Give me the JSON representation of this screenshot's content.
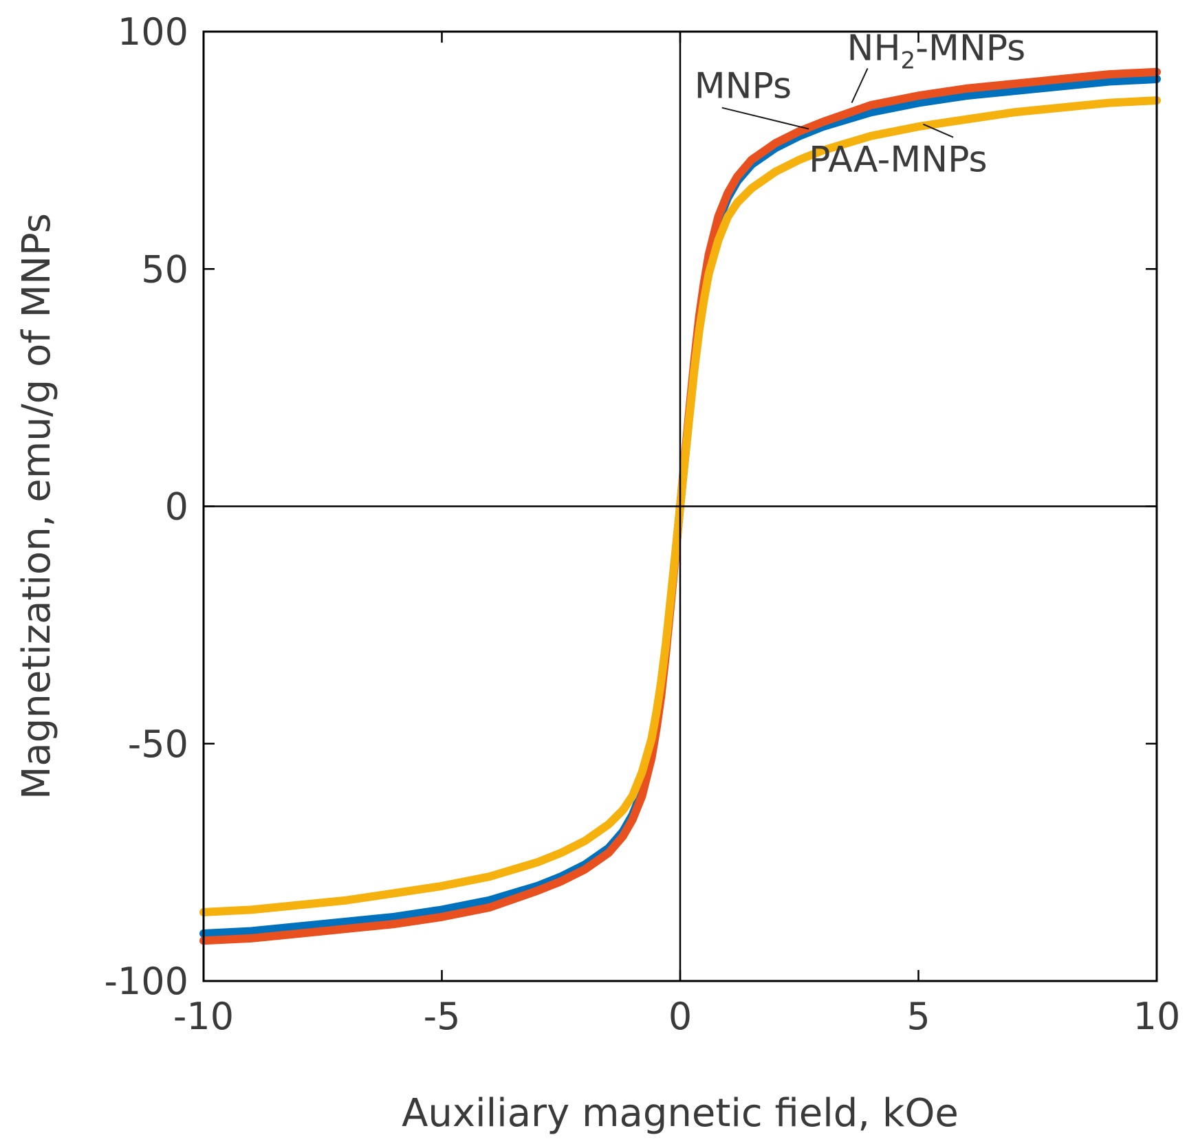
{
  "chart_data": {
    "type": "line",
    "title": "",
    "xlabel": "Auxiliary magnetic field, kOe",
    "ylabel": "Magnetization, emu/g of MNPs",
    "xlim": [
      -10,
      10
    ],
    "ylim": [
      -100,
      100
    ],
    "xticks": [
      -10,
      -5,
      0,
      5,
      10
    ],
    "yticks": [
      -100,
      -50,
      0,
      50,
      100
    ],
    "xtick_labels": [
      "-10",
      "-5",
      "0",
      "5",
      "10"
    ],
    "ytick_labels": [
      "-100",
      "-50",
      "0",
      "50",
      "100"
    ],
    "grid": false,
    "zero_lines": true,
    "legend": "none",
    "x": [
      -10,
      -9,
      -8,
      -7,
      -6,
      -5,
      -4,
      -3,
      -2.5,
      -2,
      -1.5,
      -1.2,
      -1,
      -0.8,
      -0.6,
      -0.5,
      -0.4,
      -0.3,
      -0.2,
      -0.1,
      0,
      0.1,
      0.2,
      0.3,
      0.4,
      0.5,
      0.6,
      0.8,
      1,
      1.2,
      1.5,
      2,
      2.5,
      3,
      4,
      5,
      6,
      7,
      8,
      9,
      10
    ],
    "series": [
      {
        "name": "MNPs",
        "color": "#0072BD",
        "values": [
          -90,
          -89.5,
          -88.5,
          -87.5,
          -86.5,
          -85,
          -83,
          -80,
          -78,
          -75.5,
          -72,
          -68.5,
          -65,
          -60,
          -52,
          -46,
          -39,
          -30,
          -20,
          -10,
          0,
          10,
          20,
          30,
          39,
          46,
          52,
          60,
          65,
          68.5,
          72,
          75.5,
          78,
          80,
          83,
          85,
          86.5,
          87.5,
          88.5,
          89.5,
          90
        ]
      },
      {
        "name": "NH",
        "color": "#E85020",
        "values": [
          -91.5,
          -91,
          -90,
          -89,
          -88,
          -86.5,
          -84.5,
          -81,
          -79,
          -76.5,
          -73,
          -69.5,
          -66,
          -61,
          -53,
          -47,
          -40,
          -31,
          -21,
          -10.5,
          0,
          10.5,
          21,
          31,
          40,
          47,
          53,
          61,
          66,
          69.5,
          73,
          76.5,
          79,
          81,
          84.5,
          86.5,
          88,
          89,
          90,
          91,
          91.5
        ]
      },
      {
        "name": "PAA-MNPs",
        "color": "#F5B10E",
        "values": [
          -85.5,
          -85,
          -84,
          -83,
          -81.5,
          -80,
          -78,
          -75,
          -73,
          -70.5,
          -67,
          -64,
          -61,
          -56,
          -49,
          -43.5,
          -37,
          -29,
          -19.5,
          -9.8,
          0,
          9.8,
          19.5,
          29,
          37,
          43.5,
          49,
          56,
          61,
          64,
          67,
          70.5,
          73,
          75,
          78,
          80,
          81.5,
          83,
          84,
          85,
          85.5
        ]
      }
    ],
    "annotations": [
      {
        "text": "MNPs",
        "series": "MNPs",
        "at_x": 2.7,
        "at_y": 79.5,
        "label_x": 0.3,
        "label_y": 86
      },
      {
        "text": "NH",
        "subscript": "2",
        "suffix": "-MNPs",
        "series": "NH",
        "at_x": 3.6,
        "at_y": 85,
        "label_x": 3.5,
        "label_y": 94
      },
      {
        "text": "PAA-MNPs",
        "series": "PAA-MNPs",
        "at_x": 5.1,
        "at_y": 80.5,
        "label_x": 2.7,
        "label_y": 70.5
      }
    ]
  }
}
